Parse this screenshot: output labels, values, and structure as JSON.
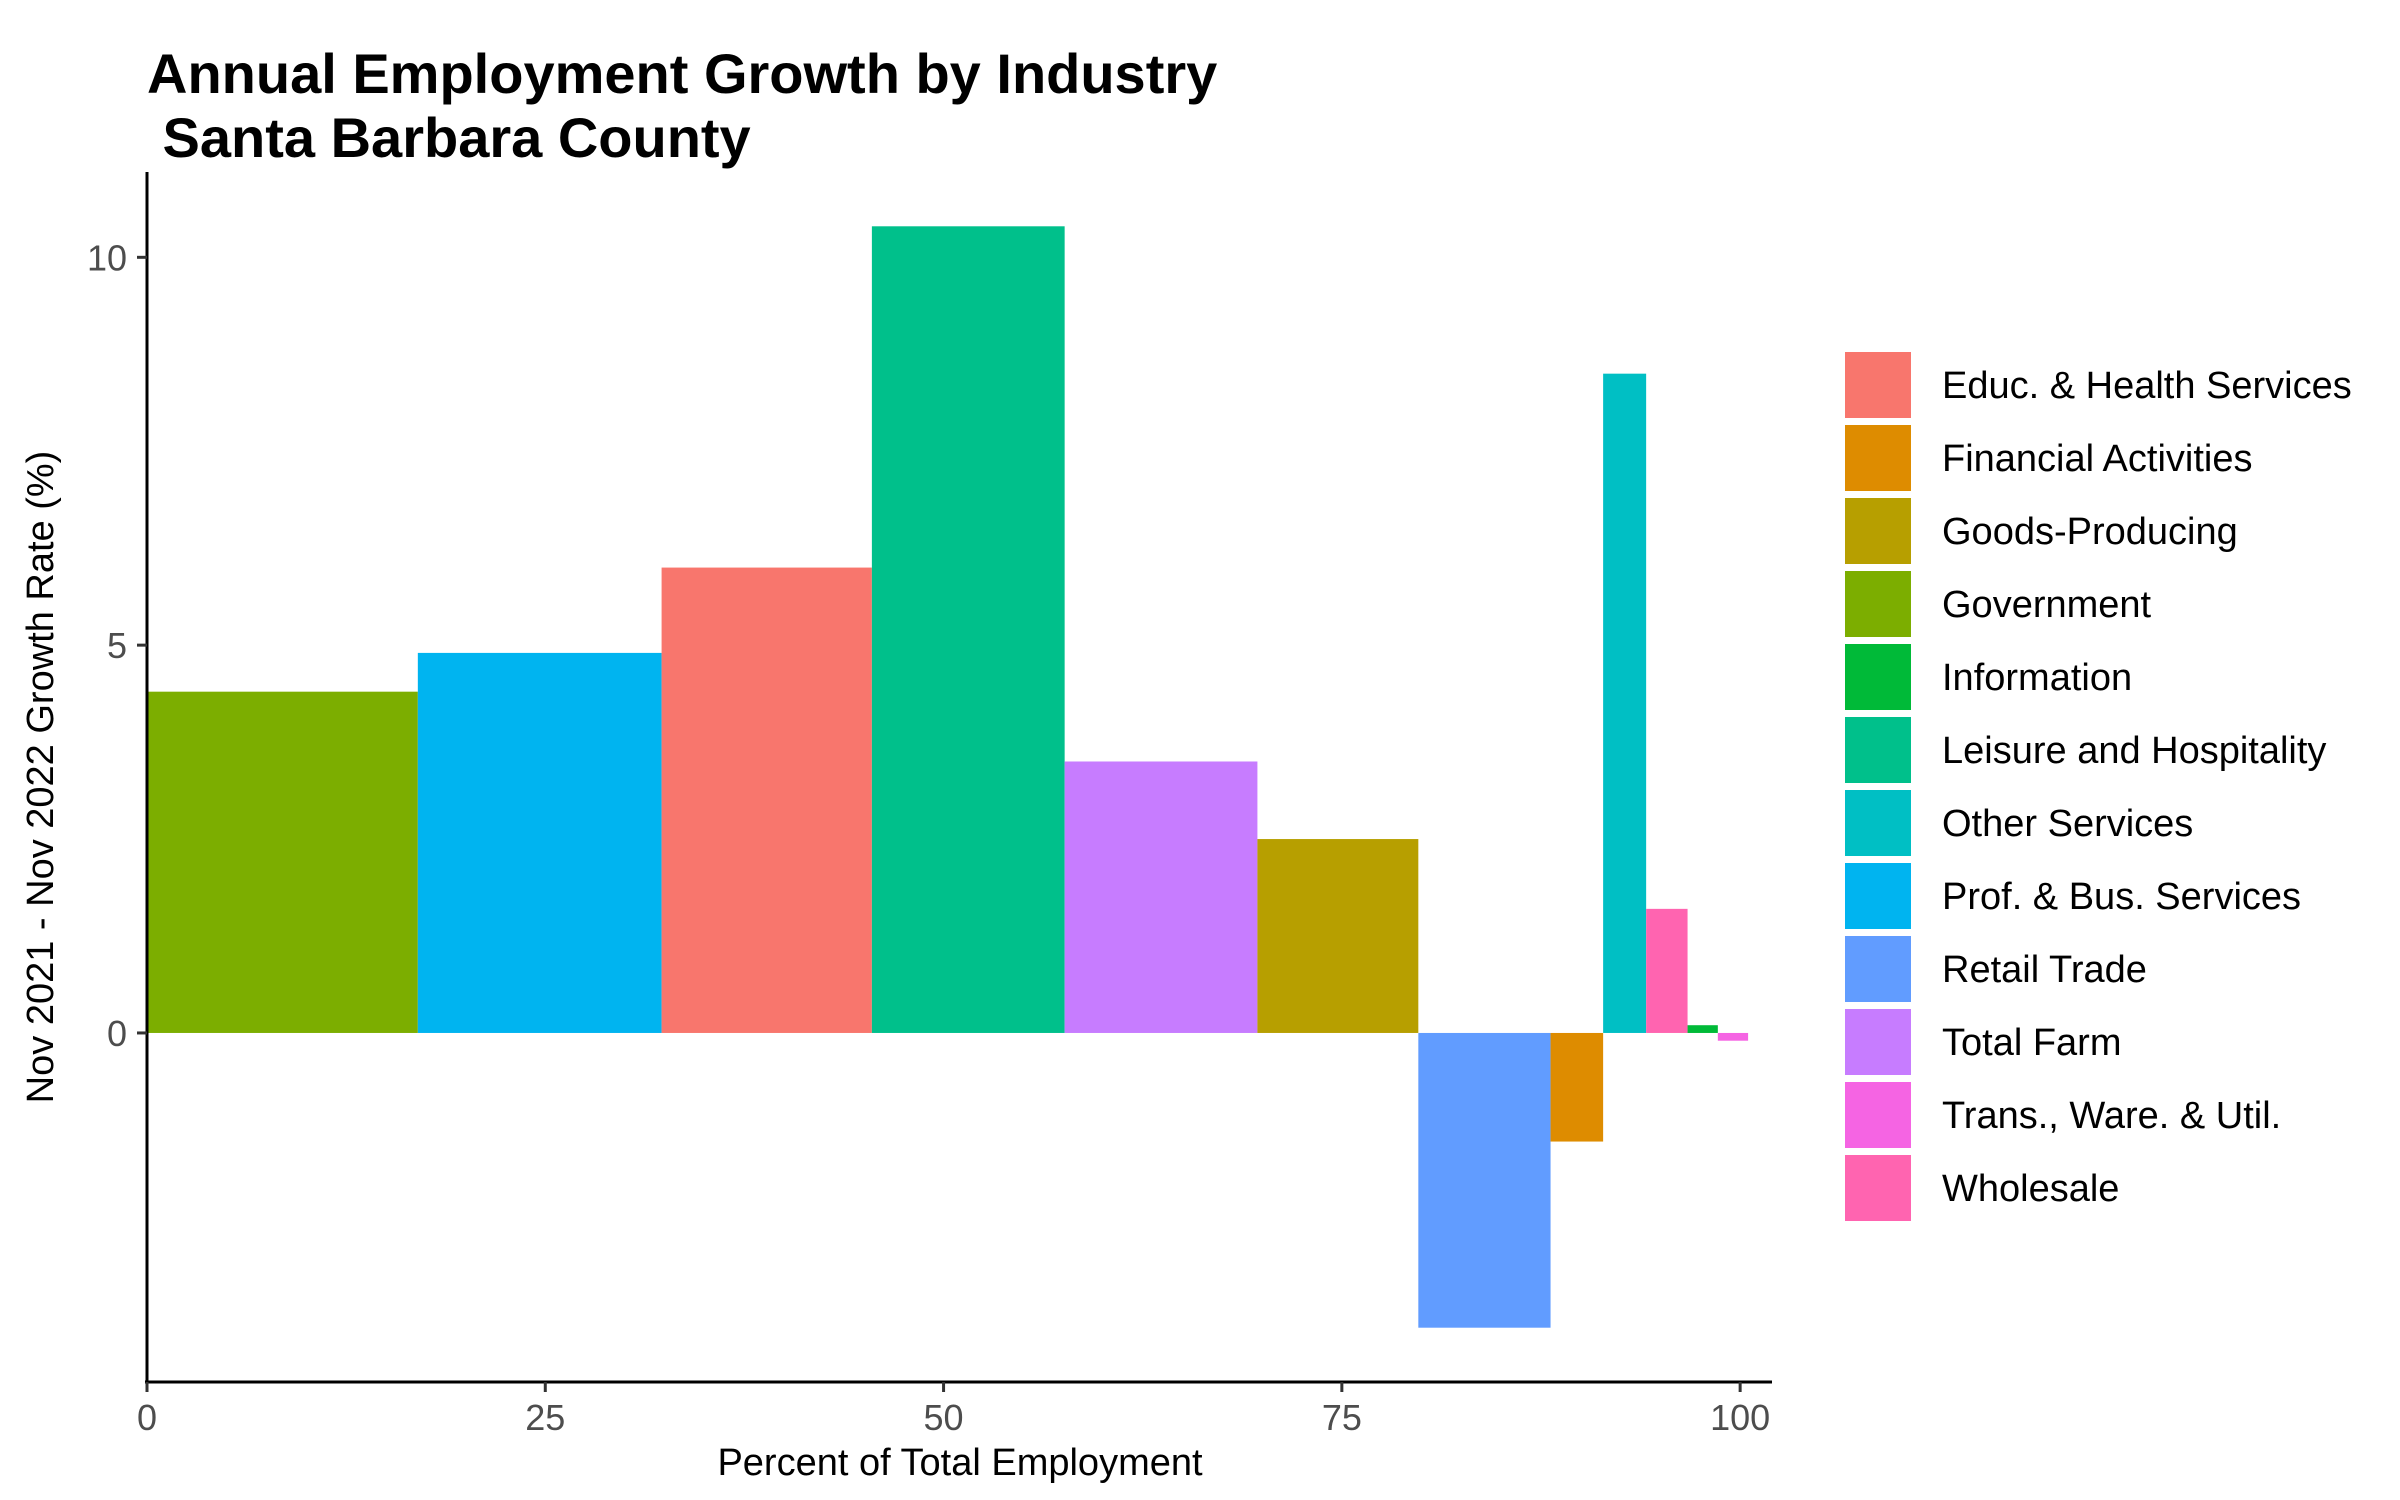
{
  "chart_data": {
    "type": "bar",
    "title_line1": "Annual Employment Growth by Industry",
    "title_line2": " Santa Barbara County",
    "xlabel": "Percent of Total Employment",
    "ylabel": "Nov 2021 - Nov 2022 Growth Rate (%)",
    "xlim": [
      0,
      102
    ],
    "ylim": [
      -4.5,
      11.1
    ],
    "x_ticks": [
      0,
      25,
      50,
      75,
      100
    ],
    "y_ticks": [
      0,
      5,
      10
    ],
    "grid": false,
    "legend_position": "right",
    "bars": [
      {
        "category": "Government",
        "x_start": 0,
        "x_end": 17,
        "value": 4.4,
        "color": "#7CAE00"
      },
      {
        "category": "Prof. & Bus. Services",
        "x_start": 17,
        "x_end": 32.3,
        "value": 4.9,
        "color": "#00B4F0"
      },
      {
        "category": "Educ. & Health Services",
        "x_start": 32.3,
        "x_end": 45.5,
        "value": 6.0,
        "color": "#F8766D"
      },
      {
        "category": "Leisure and Hospitality",
        "x_start": 45.5,
        "x_end": 57.6,
        "value": 10.4,
        "color": "#00C08B"
      },
      {
        "category": "Total Farm",
        "x_start": 57.6,
        "x_end": 69.7,
        "value": 3.5,
        "color": "#C77CFF"
      },
      {
        "category": "Goods-Producing",
        "x_start": 69.7,
        "x_end": 79.8,
        "value": 2.5,
        "color": "#B79F00"
      },
      {
        "category": "Retail Trade",
        "x_start": 79.8,
        "x_end": 88.1,
        "value": -3.8,
        "color": "#619CFF"
      },
      {
        "category": "Financial Activities",
        "x_start": 88.1,
        "x_end": 91.4,
        "value": -1.4,
        "color": "#DE8C00"
      },
      {
        "category": "Other Services",
        "x_start": 91.4,
        "x_end": 94.1,
        "value": 8.5,
        "color": "#00BFC4"
      },
      {
        "category": "Wholesale",
        "x_start": 94.1,
        "x_end": 96.7,
        "value": 1.6,
        "color": "#FF64B0"
      },
      {
        "category": "Information",
        "x_start": 96.7,
        "x_end": 98.6,
        "value": 0.1,
        "color": "#00BA38"
      },
      {
        "category": "Trans., Ware. & Util.",
        "x_start": 98.6,
        "x_end": 100.5,
        "value": -0.1,
        "color": "#F564E3"
      }
    ],
    "legend": [
      {
        "label": "Educ. & Health Services",
        "color": "#F8766D"
      },
      {
        "label": "Financial Activities",
        "color": "#DE8C00"
      },
      {
        "label": "Goods-Producing",
        "color": "#B79F00"
      },
      {
        "label": "Government",
        "color": "#7CAE00"
      },
      {
        "label": "Information",
        "color": "#00BA38"
      },
      {
        "label": "Leisure and Hospitality",
        "color": "#00C08B"
      },
      {
        "label": "Other Services",
        "color": "#00BFC4"
      },
      {
        "label": "Prof. & Bus. Services",
        "color": "#00B4F0"
      },
      {
        "label": "Retail Trade",
        "color": "#619CFF"
      },
      {
        "label": "Total Farm",
        "color": "#C77CFF"
      },
      {
        "label": "Trans., Ware. & Util.",
        "color": "#F564E3"
      },
      {
        "label": "Wholesale",
        "color": "#FF64B0"
      }
    ]
  }
}
